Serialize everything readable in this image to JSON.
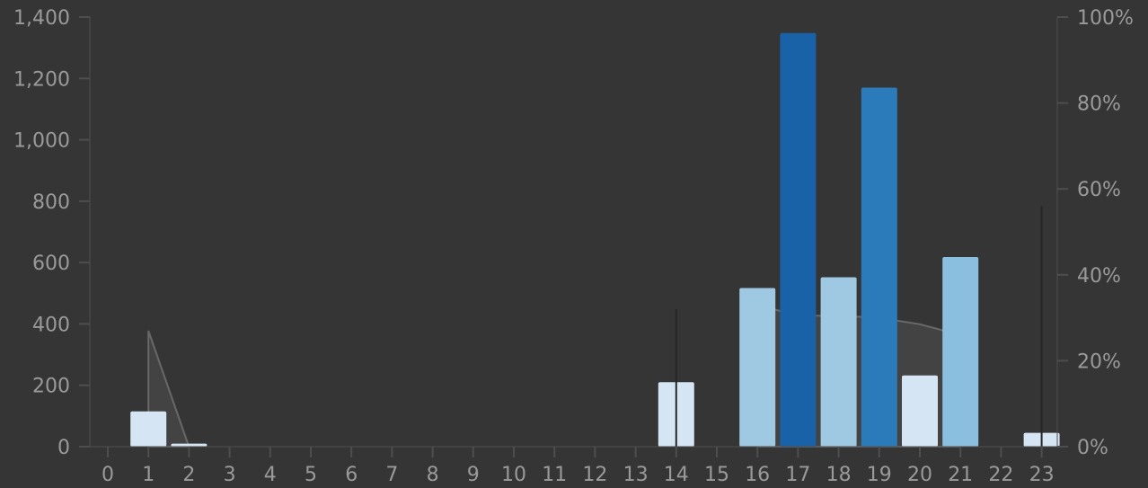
{
  "chart_data": {
    "type": "bar",
    "title": "",
    "xlabel": "",
    "ylabel": "",
    "categories": [
      "0",
      "1",
      "2",
      "3",
      "4",
      "5",
      "6",
      "7",
      "8",
      "9",
      "10",
      "11",
      "12",
      "13",
      "14",
      "15",
      "16",
      "17",
      "18",
      "19",
      "20",
      "21",
      "22",
      "23"
    ],
    "series": [
      {
        "type": "bar",
        "axis": "left",
        "values": [
          0,
          115,
          10,
          0,
          0,
          0,
          0,
          0,
          0,
          0,
          0,
          0,
          0,
          0,
          210,
          0,
          517,
          1348,
          552,
          1170,
          232,
          618,
          0,
          45
        ]
      },
      {
        "type": "area",
        "axis": "right",
        "values": [
          null,
          27,
          0,
          null,
          null,
          null,
          null,
          null,
          null,
          null,
          null,
          null,
          null,
          null,
          32,
          null,
          33,
          30.5,
          30.5,
          30,
          28.5,
          26,
          null,
          56
        ]
      }
    ],
    "y_left": {
      "ylim": [
        0,
        1400
      ],
      "ticks": [
        "0",
        "200",
        "400",
        "600",
        "800",
        "1,000",
        "1,200",
        "1,400"
      ]
    },
    "y_right": {
      "ylim": [
        0,
        100
      ],
      "ticks": [
        "0%",
        "20%",
        "40%",
        "60%",
        "80%",
        "100%"
      ]
    },
    "grid": false,
    "legend": "none",
    "colors": {
      "background": "#353535",
      "bar_scale": [
        "#d5e5f4",
        "#9fc8e3",
        "#8bbfe0",
        "#2b7bba",
        "#1a62a8"
      ],
      "area_fill": "rgba(255,255,255,0.07)",
      "area_line": "#8c8c8c",
      "spike": "#262626",
      "tick_text": "#9a9a9a"
    }
  }
}
